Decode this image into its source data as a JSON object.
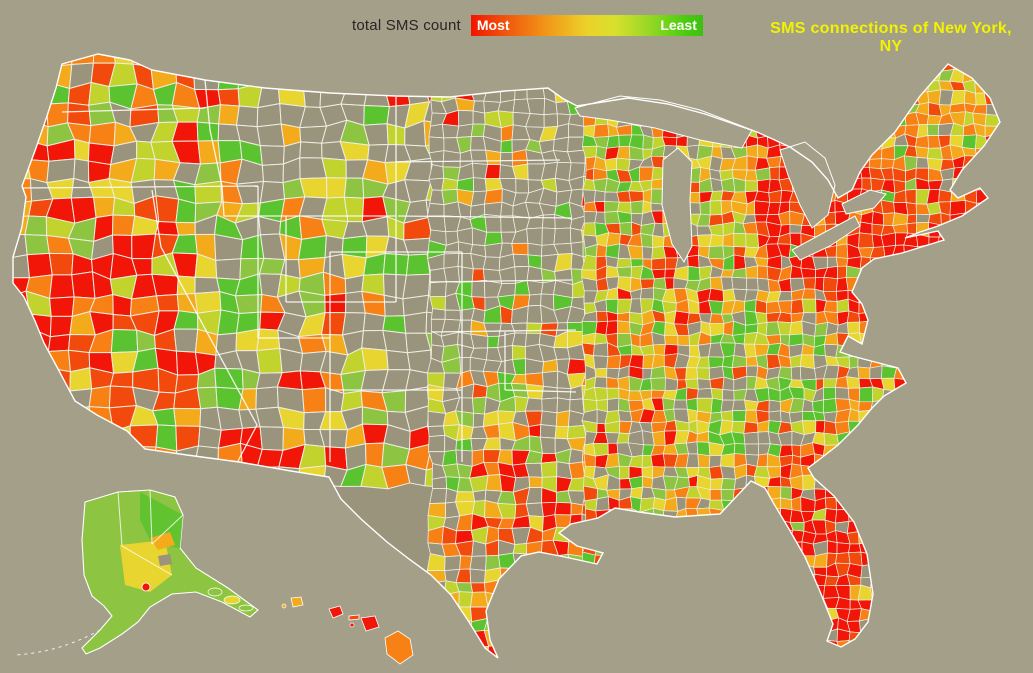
{
  "header": {
    "legend_label": "total SMS count",
    "legend_most": "Most",
    "legend_least": "Least",
    "title": "SMS connections of New York, NY",
    "title_color": "#f3f300",
    "label_color": "#262626"
  },
  "map": {
    "background_color": "#a39f88",
    "no_data_color": "#9a947c",
    "county_line_color": "#eeede0",
    "state_line_color": "#ffffff",
    "outline_color": "#ffffff"
  },
  "chart_data": {
    "type": "choropleth",
    "title": "SMS connections of New York, NY",
    "metric": "total SMS count",
    "geography": "United States counties, with Alaska and Hawaii insets",
    "legend": {
      "label": "total SMS count",
      "max_label": "Most",
      "min_label": "Least",
      "gradient": [
        "#f21400",
        "#f29417",
        "#ecd22a",
        "#a5d928",
        "#3fbe12"
      ]
    },
    "palette": [
      "#f11607",
      "#f2490d",
      "#f78114",
      "#f3ab1b",
      "#e9d52f",
      "#c2d32d",
      "#8dc441",
      "#5bc32f"
    ],
    "no_data_color": "#9a947c",
    "regional_pattern": [
      {
        "region": "Northeast corridor (NY metro, Long Island, New England, NJ, eastern PA)",
        "intensity": "most (solid red)"
      },
      {
        "region": "Florida peninsula and coasts",
        "intensity": "most (red/orange)"
      },
      {
        "region": "Coastal/Southern California",
        "intensity": "most (red)"
      },
      {
        "region": "Las Vegas, Phoenix, Salt Lake, Denver metros",
        "intensity": "high (red patches)"
      },
      {
        "region": "Great Lakes metros (Chicago, Milwaukee, Detroit, Cleveland)",
        "intensity": "high (red/orange clusters)"
      },
      {
        "region": "Pacific Northwest (Seattle, Portland)",
        "intensity": "mixed high"
      },
      {
        "region": "Midwest and Southeast rural counties",
        "intensity": "moderate to least (yellow/green mix)"
      },
      {
        "region": "Great Plains and Mountain West interior",
        "intensity": "mostly gray (no colored value)"
      },
      {
        "region": "Alaska",
        "intensity": "least (green, yellow center, red dot at Anchorage)"
      },
      {
        "region": "Hawaii",
        "intensity": "high (red/orange islands)"
      }
    ]
  }
}
